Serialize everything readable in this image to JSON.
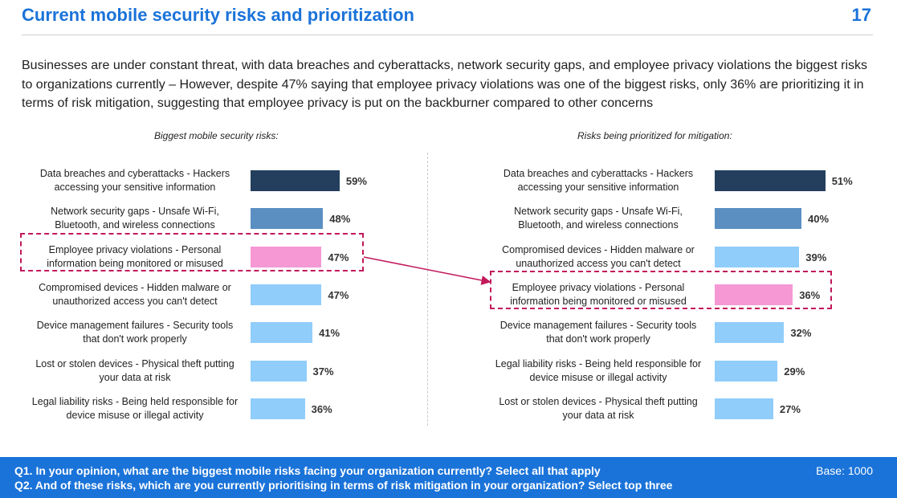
{
  "header": {
    "title": "Current mobile security risks and prioritization",
    "page_number": "17"
  },
  "intro": "Businesses are under constant threat, with data breaches and cyberattacks, network security gaps, and employee privacy violations the biggest risks to organizations currently – However, despite 47% saying that employee privacy violations was one of the biggest risks, only 36% are prioritizing it in terms of risk mitigation, suggesting that employee privacy is put on the backburner compared to other concerns",
  "colors": {
    "title": "#1a73d9",
    "footer": "#1a73d9",
    "bar_dark": "#243f5e",
    "bar_mid": "#5b8fc2",
    "bar_light": "#90cdfb",
    "bar_highlight": "#f598d4",
    "highlight_border": "#c2185b"
  },
  "chart_data": [
    {
      "type": "bar",
      "orientation": "horizontal",
      "title": "Biggest mobile security risks:",
      "categories": [
        "Data breaches and cyberattacks - Hackers accessing your sensitive information",
        "Network security gaps - Unsafe Wi-Fi, Bluetooth, and wireless connections",
        "Employee privacy violations - Personal information being monitored or misused",
        "Compromised devices - Hidden malware or unauthorized access you can't detect",
        "Device management failures - Security tools that don't work properly",
        "Lost or stolen devices - Physical theft putting your data at risk",
        "Legal liability risks - Being held responsible for device misuse or illegal activity"
      ],
      "label_lines": [
        [
          "Data breaches and cyberattacks - Hackers",
          "accessing your sensitive information"
        ],
        [
          "Network security gaps - Unsafe Wi-Fi,",
          "Bluetooth, and wireless connections"
        ],
        [
          "Employee privacy violations - Personal",
          "information being monitored or misused"
        ],
        [
          "Compromised devices - Hidden malware or",
          "unauthorized access you can't detect"
        ],
        [
          "Device management failures - Security tools",
          "that don't work properly"
        ],
        [
          "Lost or stolen devices - Physical theft putting",
          "your data at risk"
        ],
        [
          "Legal liability risks - Being held responsible for",
          "device misuse or illegal activity"
        ]
      ],
      "values": [
        59,
        48,
        47,
        47,
        41,
        37,
        36
      ],
      "value_labels": [
        "59%",
        "48%",
        "47%",
        "47%",
        "41%",
        "37%",
        "36%"
      ],
      "bar_colors": [
        "dark",
        "mid",
        "highlight",
        "light",
        "light",
        "light",
        "light"
      ],
      "highlight_index": 2,
      "xlim": [
        0,
        100
      ]
    },
    {
      "type": "bar",
      "orientation": "horizontal",
      "title": "Risks being prioritized for mitigation:",
      "categories": [
        "Data breaches and cyberattacks - Hackers accessing your sensitive information",
        "Network security gaps - Unsafe Wi-Fi, Bluetooth, and wireless connections",
        "Compromised devices - Hidden malware or unauthorized access you can't detect",
        "Employee privacy violations - Personal information being monitored or misused",
        "Device management failures - Security tools that don't work properly",
        "Legal liability risks - Being held responsible for device misuse or illegal activity",
        "Lost or stolen devices - Physical theft putting your data at risk"
      ],
      "label_lines": [
        [
          "Data breaches and cyberattacks - Hackers",
          "accessing your sensitive information"
        ],
        [
          "Network security gaps - Unsafe Wi-Fi,",
          "Bluetooth, and wireless connections"
        ],
        [
          "Compromised devices - Hidden malware or",
          "unauthorized access you can't detect"
        ],
        [
          "Employee privacy violations - Personal",
          "information being monitored or misused"
        ],
        [
          "Device management failures - Security tools",
          "that don't work properly"
        ],
        [
          "Legal liability risks - Being held responsible for",
          "device misuse or illegal activity"
        ],
        [
          "Lost or stolen devices - Physical theft putting",
          "your data at risk"
        ]
      ],
      "values": [
        51,
        40,
        39,
        36,
        32,
        29,
        27
      ],
      "value_labels": [
        "51%",
        "40%",
        "39%",
        "36%",
        "32%",
        "29%",
        "27%"
      ],
      "bar_colors": [
        "dark",
        "mid",
        "light",
        "highlight",
        "light",
        "light",
        "light"
      ],
      "highlight_index": 3,
      "xlim": [
        0,
        100
      ]
    }
  ],
  "footer": {
    "q1": "Q1.  In your opinion, what are the biggest mobile risks facing your organization currently?  Select all that apply",
    "q2": "Q2.  And of these risks, which are you currently prioritising in terms of risk mitigation in your organization? Select top three",
    "base": "Base: 1000"
  }
}
